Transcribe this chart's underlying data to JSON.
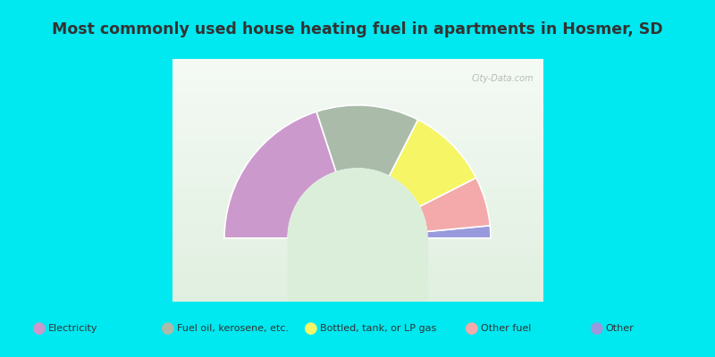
{
  "title": "Most commonly used house heating fuel in apartments in Hosmer, SD",
  "title_color": "#333333",
  "title_bg": "#00e8f0",
  "chart_bg_top": "#d8eedc",
  "chart_bg_bottom": "#e8f4e8",
  "segments": [
    {
      "label": "Electricity",
      "value": 0.4,
      "color": "#cc99cc"
    },
    {
      "label": "Fuel oil, kerosene, etc.",
      "value": 0.25,
      "color": "#aabbaa"
    },
    {
      "label": "Bottled, tank, or LP gas",
      "value": 0.2,
      "color": "#f5f566"
    },
    {
      "label": "Other fuel",
      "value": 0.12,
      "color": "#f4aaaa"
    },
    {
      "label": "Other",
      "value": 0.03,
      "color": "#9999dd"
    }
  ],
  "legend_bg": "#00e8f0",
  "legend_text_color": "#333333",
  "watermark": "City-Data.com",
  "outer_r": 1.15,
  "inner_r": 0.6
}
